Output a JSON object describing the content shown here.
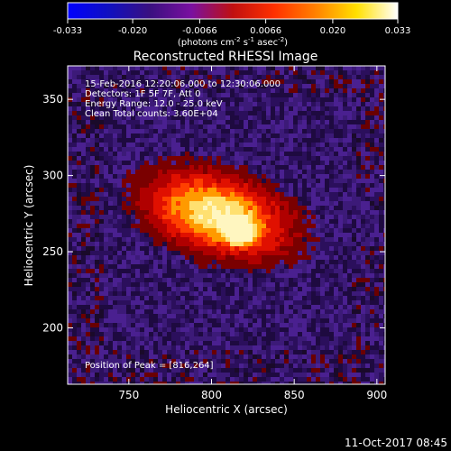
{
  "chart_data": {
    "type": "heatmap",
    "title": "Reconstructed RHESSI Image",
    "xlabel": "Heliocentric X (arcsec)",
    "ylabel": "Heliocentric Y (arcsec)",
    "xlim": [
      713,
      905
    ],
    "ylim": [
      163,
      372
    ],
    "xticks": [
      750,
      800,
      850,
      900
    ],
    "yticks": [
      200,
      250,
      300,
      350
    ],
    "colorbar": {
      "min": -0.033,
      "max": 0.033,
      "ticks": [
        "-0.033",
        "-0.020",
        "-0.0066",
        "0.0066",
        "0.020",
        "0.033"
      ],
      "tick_values": [
        -0.033,
        -0.02,
        -0.0066,
        0.0066,
        0.02,
        0.033
      ],
      "unit_prefix": "(photons cm",
      "unit_exp1": "-2",
      "unit_mid1": " s",
      "unit_exp2": "-1",
      "unit_mid2": " asec",
      "unit_exp3": "-2",
      "unit_suffix": ")",
      "colors": [
        "#0000ff",
        "#1010c0",
        "#3a1080",
        "#7a10a0",
        "#c01010",
        "#ff3000",
        "#ff8000",
        "#ffe000",
        "#ffffff"
      ]
    },
    "info_lines": [
      "15-Feb-2016 12:20:06.000 to 12:30:06.000",
      "Detectors: 1F 5F 7F, Att 0",
      "Energy Range: 12.0 - 25.0 keV",
      "Clean     Total counts: 3.60E+04"
    ],
    "peak_label": "Position of Peak = [816,264]",
    "peak": [
      816,
      264
    ],
    "footer_date": "11-Oct-2017 08:45",
    "background_colors": [
      "#2b0f5c",
      "#3c1a78",
      "#4a2090",
      "#1e0a40"
    ],
    "source_colors": [
      "#7a0000",
      "#b00000",
      "#e01000",
      "#ff4000",
      "#ff9a00",
      "#ffe070",
      "#fff6c0"
    ]
  }
}
